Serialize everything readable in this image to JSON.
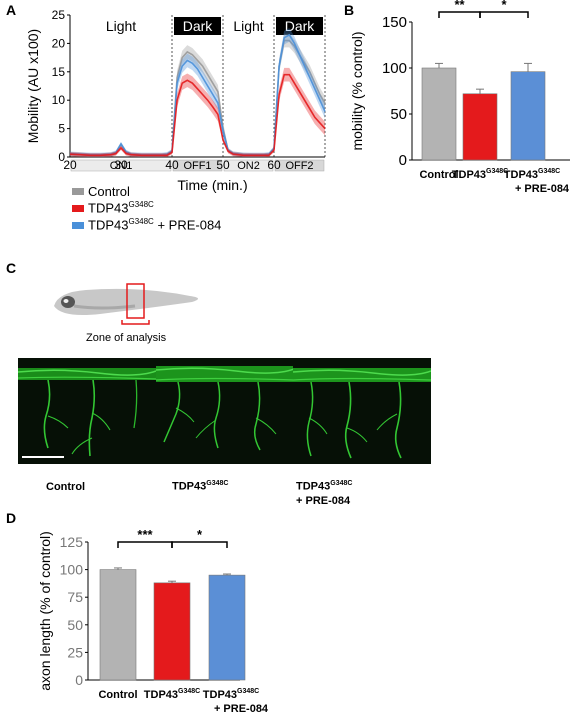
{
  "panels": {
    "a": "A",
    "b": "B",
    "c": "C",
    "d": "D"
  },
  "groups": {
    "control": "Control",
    "tdp_base": "TDP43",
    "tdp_sup": "G348C",
    "pre_suffix": "+ PRE-084"
  },
  "colors": {
    "control": "#999999",
    "tdp": "#e41a1c",
    "pre": "#4a90d9",
    "control_bar": "#b3b3b3",
    "pre_bar": "#5b8fd6"
  },
  "panel_c": {
    "zone_label": "Zone of analysis"
  },
  "chart_data": [
    {
      "id": "A",
      "type": "line",
      "xlabel": "Time (min.)",
      "ylabel": "Mobility (AU x100)",
      "xlim": [
        20,
        70
      ],
      "ylim": [
        0,
        25
      ],
      "xticks": [
        20,
        30,
        40,
        50,
        60
      ],
      "yticks": [
        0,
        5,
        10,
        15,
        20,
        25
      ],
      "phases": [
        {
          "label": "Light",
          "start": 20,
          "end": 40
        },
        {
          "label": "Dark",
          "start": 40,
          "end": 50
        },
        {
          "label": "Light",
          "start": 50,
          "end": 60
        },
        {
          "label": "Dark",
          "start": 60,
          "end": 70
        }
      ],
      "periods": [
        "ON1",
        "OFF1",
        "ON2",
        "OFF2"
      ],
      "x": [
        20,
        22,
        24,
        26,
        28,
        29,
        30,
        31,
        32,
        34,
        36,
        38,
        39,
        40,
        41,
        42,
        43,
        44,
        45,
        46,
        47,
        48,
        49,
        50,
        51,
        52,
        54,
        56,
        58,
        59,
        60,
        61,
        62,
        63,
        64,
        65,
        66,
        67,
        68,
        69,
        70
      ],
      "series": [
        {
          "name": "Control",
          "color": "#999999",
          "values": [
            0.5,
            0.4,
            0.3,
            0.3,
            0.4,
            0.7,
            2.2,
            0.8,
            0.4,
            0.3,
            0.3,
            0.3,
            0.4,
            1,
            14,
            17.5,
            18.5,
            18,
            17,
            16,
            14.5,
            13,
            11.5,
            5,
            1.2,
            0.6,
            0.4,
            0.3,
            0.3,
            0.4,
            1.5,
            16,
            20.5,
            20.5,
            19.5,
            18,
            16.5,
            15,
            13,
            11,
            9.5
          ]
        },
        {
          "name": "TDP43G348C",
          "color": "#e41a1c",
          "values": [
            0.5,
            0.4,
            0.3,
            0.3,
            0.4,
            0.6,
            1.6,
            0.6,
            0.4,
            0.3,
            0.3,
            0.3,
            0.3,
            0.8,
            10,
            13,
            13.5,
            13,
            12,
            11,
            10,
            8.8,
            7.5,
            3,
            1,
            0.5,
            0.3,
            0.3,
            0.3,
            0.3,
            1.2,
            11,
            14.5,
            14.5,
            13,
            11.5,
            10,
            8.5,
            7,
            6,
            5
          ]
        },
        {
          "name": "TDP43G348C + PRE-084",
          "color": "#4a90d9",
          "values": [
            0.6,
            0.5,
            0.4,
            0.4,
            0.5,
            0.8,
            2.3,
            0.9,
            0.5,
            0.4,
            0.4,
            0.4,
            0.5,
            1,
            13,
            16,
            17,
            16.5,
            15.5,
            14,
            12.5,
            11,
            9.5,
            4.5,
            1.2,
            0.6,
            0.4,
            0.4,
            0.4,
            0.5,
            1.5,
            16,
            21,
            21.5,
            20,
            18,
            16,
            14,
            12,
            10,
            8
          ]
        }
      ]
    },
    {
      "id": "B",
      "type": "bar",
      "ylabel": "mobility (% control)",
      "ylim": [
        0,
        150
      ],
      "yticks": [
        0,
        50,
        100,
        150
      ],
      "categories": [
        "Control",
        "TDP43G348C",
        "TDP43G348C + PRE-084"
      ],
      "values": [
        100,
        72,
        96
      ],
      "errors": [
        5,
        5,
        9
      ],
      "significance": [
        {
          "from": 0,
          "to": 1,
          "label": "**"
        },
        {
          "from": 1,
          "to": 2,
          "label": "*"
        }
      ]
    },
    {
      "id": "D",
      "type": "bar",
      "ylabel": "axon length (% of control)",
      "ylim": [
        0,
        125
      ],
      "yticks": [
        0,
        25,
        50,
        75,
        100,
        125
      ],
      "categories": [
        "Control",
        "TDP43G348C",
        "TDP43G348C + PRE-084"
      ],
      "values": [
        100,
        88,
        95
      ],
      "errors": [
        1.5,
        1.5,
        1
      ],
      "significance": [
        {
          "from": 0,
          "to": 1,
          "label": "***"
        },
        {
          "from": 1,
          "to": 2,
          "label": "*"
        }
      ]
    }
  ]
}
